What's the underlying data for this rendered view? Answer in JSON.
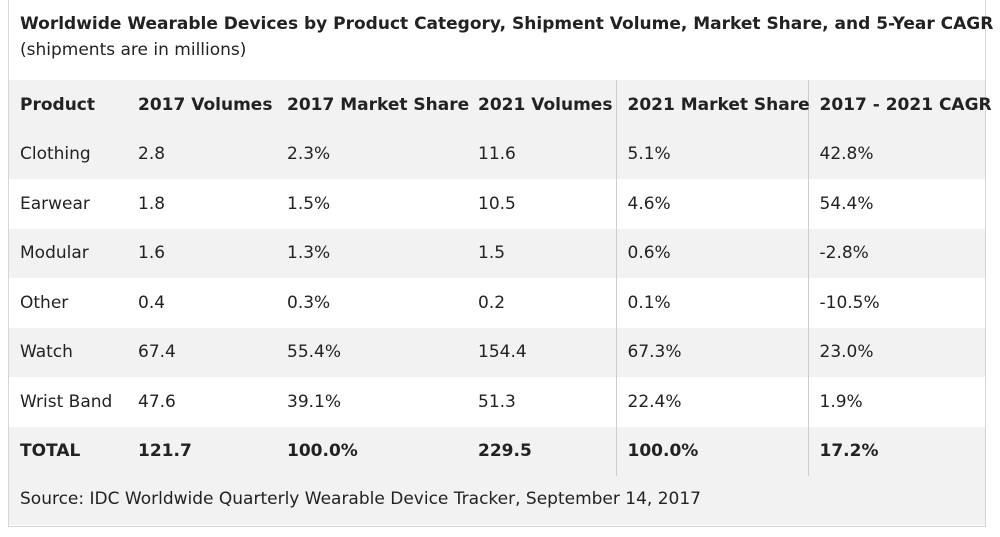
{
  "chart_data": {
    "type": "table",
    "title": "Worldwide Wearable Devices by Product Category, Shipment Volume, Market Share, and 5-Year CAGR",
    "subtitle": "(shipments are in millions)",
    "columns": [
      "Product",
      "2017 Volumes",
      "2017 Market Share",
      "2021 Volumes",
      "2021 Market Share",
      "2017 - 2021 CAGR"
    ],
    "rows": [
      [
        "Clothing",
        "2.8",
        "2.3%",
        "11.6",
        "5.1%",
        "42.8%"
      ],
      [
        "Earwear",
        "1.8",
        "1.5%",
        "10.5",
        "4.6%",
        "54.4%"
      ],
      [
        "Modular",
        "1.6",
        "1.3%",
        "1.5",
        "0.6%",
        "-2.8%"
      ],
      [
        "Other",
        "0.4",
        "0.3%",
        "0.2",
        "0.1%",
        "-10.5%"
      ],
      [
        "Watch",
        "67.4",
        "55.4%",
        "154.4",
        "67.3%",
        "23.0%"
      ],
      [
        "Wrist Band",
        "47.6",
        "39.1%",
        "51.3",
        "22.4%",
        "1.9%"
      ],
      [
        "TOTAL",
        "121.7",
        "100.0%",
        "229.5",
        "100.0%",
        "17.2%"
      ]
    ],
    "source": "Source: IDC Worldwide Quarterly Wearable Device Tracker, September 14, 2017"
  }
}
